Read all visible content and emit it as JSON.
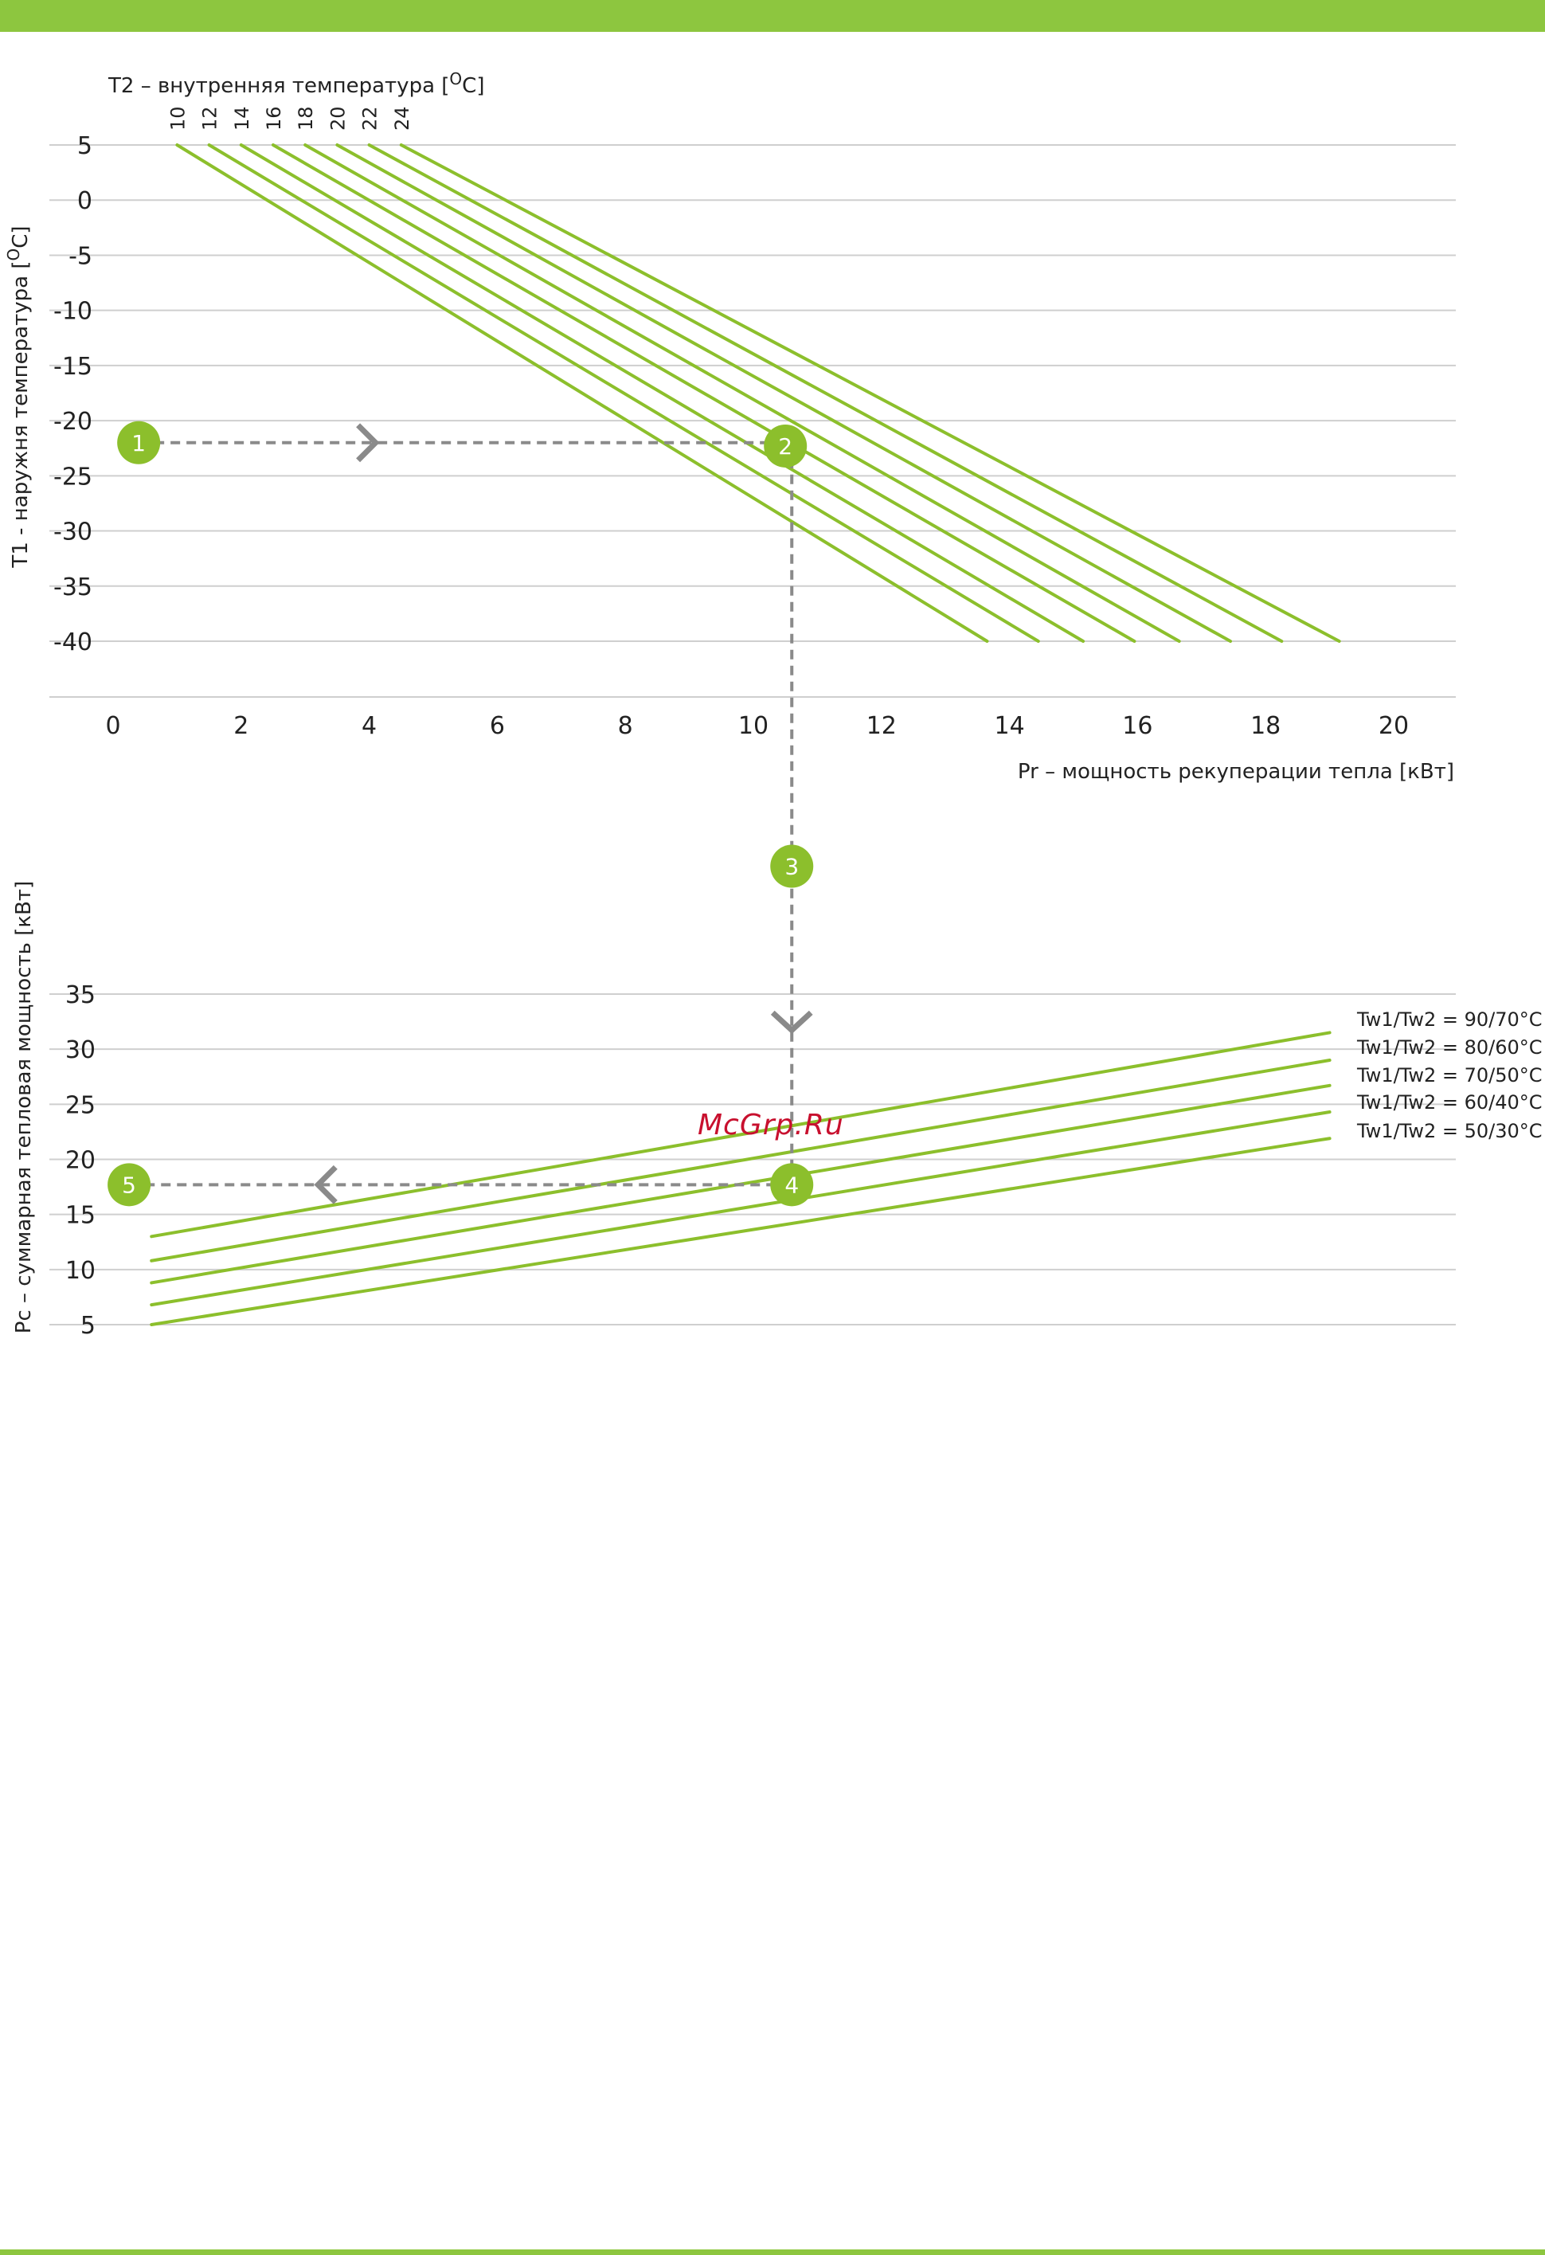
{
  "colors": {
    "accent": "#8dc63f",
    "curve": "#8cbf2c",
    "grid": "#cfcfcf",
    "guide": "#8a8a8a",
    "text": "#222222",
    "watermark": "#c8102e"
  },
  "watermark": "McGrp.Ru",
  "chart_data": [
    {
      "type": "line",
      "title": "T2 – внутренняя температура [°C]",
      "title_main": "T2 – внутренняя температура [",
      "title_unit": "O",
      "title_end": "C]",
      "xlabel": "Pr – мощность рекуперации тепла [кВт]",
      "ylabel": "T1 - наружня температура [°C]",
      "ylabel_main": "T1 - наружня температура [",
      "ylabel_unit": "O",
      "ylabel_end": "C]",
      "xlim": [
        0,
        20
      ],
      "ylim": [
        -40,
        5
      ],
      "x_ticks": [
        "0",
        "2",
        "4",
        "6",
        "8",
        "10",
        "12",
        "14",
        "16",
        "18",
        "20"
      ],
      "y_ticks": [
        "5",
        "0",
        "-5",
        "-10",
        "-15",
        "-20",
        "-25",
        "-30",
        "-35",
        "-40"
      ],
      "grid": true,
      "series": [
        {
          "name": "10",
          "points": [
            [
              1.0,
              5
            ],
            [
              13.65,
              -40
            ]
          ]
        },
        {
          "name": "12",
          "points": [
            [
              1.5,
              5
            ],
            [
              14.45,
              -40
            ]
          ]
        },
        {
          "name": "14",
          "points": [
            [
              2.0,
              5
            ],
            [
              15.15,
              -40
            ]
          ]
        },
        {
          "name": "16",
          "points": [
            [
              2.5,
              5
            ],
            [
              15.95,
              -40
            ]
          ]
        },
        {
          "name": "18",
          "points": [
            [
              3.0,
              5
            ],
            [
              16.65,
              -40
            ]
          ]
        },
        {
          "name": "20",
          "points": [
            [
              3.5,
              5
            ],
            [
              17.45,
              -40
            ]
          ]
        },
        {
          "name": "22",
          "points": [
            [
              4.0,
              5
            ],
            [
              18.25,
              -40
            ]
          ]
        },
        {
          "name": "24",
          "points": [
            [
              4.5,
              5
            ],
            [
              19.15,
              -40
            ]
          ]
        }
      ]
    },
    {
      "type": "line",
      "ylabel": "Pc – суммарная тепловая мощность [кВт]",
      "xlim": [
        0,
        20
      ],
      "ylim": [
        5,
        35
      ],
      "y_ticks": [
        "35",
        "30",
        "25",
        "20",
        "15",
        "10",
        "5"
      ],
      "grid": true,
      "series": [
        {
          "name": "Tw1/Tw2 = 90/70°C",
          "points": [
            [
              0.6,
              13.0
            ],
            [
              19.0,
              31.5
            ]
          ]
        },
        {
          "name": "Tw1/Tw2 = 80/60°C",
          "points": [
            [
              0.6,
              10.8
            ],
            [
              19.0,
              29.0
            ]
          ]
        },
        {
          "name": "Tw1/Tw2 = 70/50°C",
          "points": [
            [
              0.6,
              8.8
            ],
            [
              19.0,
              26.7
            ]
          ]
        },
        {
          "name": "Tw1/Tw2 = 60/40°C",
          "points": [
            [
              0.6,
              6.8
            ],
            [
              19.0,
              24.3
            ]
          ]
        },
        {
          "name": "Tw1/Tw2 = 50/30°C",
          "points": [
            [
              0.6,
              5.0
            ],
            [
              19.0,
              21.9
            ]
          ]
        }
      ]
    }
  ],
  "procedure": {
    "markers": [
      {
        "label": "1",
        "chart": 0,
        "x": 0.4,
        "y": -22
      },
      {
        "label": "2",
        "chart": 0,
        "x": 10.5,
        "y": -22.3
      },
      {
        "label": "3",
        "chart": 1,
        "x": 10.6,
        "y": 46.6
      },
      {
        "label": "4",
        "chart": 1,
        "x": 10.6,
        "y": 17.7
      },
      {
        "label": "5",
        "chart": 1,
        "x": 0.25,
        "y": 17.7
      }
    ],
    "guides": [
      {
        "from": [
          "c0",
          0.4,
          -22
        ],
        "to": [
          "c0",
          10.6,
          -22
        ]
      },
      {
        "from": [
          "c0",
          10.6,
          -22
        ],
        "to": [
          "c1",
          10.6,
          17.7
        ]
      },
      {
        "from": [
          "c1",
          10.6,
          17.7
        ],
        "to": [
          "c1",
          0.25,
          17.7
        ]
      }
    ],
    "arrows": [
      {
        "chart": 0,
        "x": 4.0,
        "y": -22,
        "dir": "right"
      },
      {
        "chart": 1,
        "x": 10.6,
        "y": 32.3,
        "dir": "down"
      },
      {
        "chart": 1,
        "x": 3.3,
        "y": 17.7,
        "dir": "left"
      }
    ]
  }
}
